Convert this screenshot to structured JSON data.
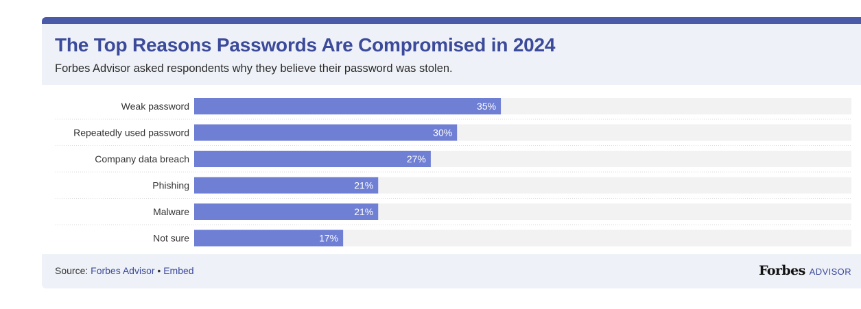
{
  "header": {
    "title": "The Top Reasons Passwords Are Compromised in 2024",
    "subtitle": "Forbes Advisor asked respondents why they believe their password was stolen."
  },
  "footer": {
    "source_prefix": "Source: ",
    "source_link": "Forbes Advisor",
    "separator": " • ",
    "embed_link": "Embed",
    "brand_name": "Forbes",
    "brand_suffix": "ADVISOR"
  },
  "colors": {
    "bar": "#6f7fd4",
    "track": "#f2f2f2",
    "accent": "#4a5aa8"
  },
  "chart_data": {
    "type": "bar",
    "orientation": "horizontal",
    "title": "The Top Reasons Passwords Are Compromised in 2024",
    "subtitle": "Forbes Advisor asked respondents why they believe their password was stolen.",
    "categories": [
      "Weak password",
      "Repeatedly used password",
      "Company data breach",
      "Phishing",
      "Malware",
      "Not sure"
    ],
    "values": [
      35,
      30,
      27,
      21,
      21,
      17
    ],
    "value_labels": [
      "35%",
      "30%",
      "27%",
      "21%",
      "21%",
      "17%"
    ],
    "xlim": [
      0,
      75
    ],
    "unit": "%",
    "grid": false,
    "legend": "none"
  }
}
